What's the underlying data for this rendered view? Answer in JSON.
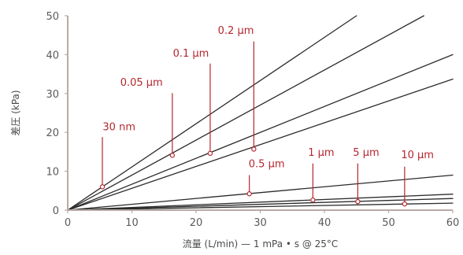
{
  "chart_data": {
    "type": "line",
    "title": "",
    "xlabel": "流量 (L/min) — 1 mPa • s @ 25°C",
    "ylabel": "差圧 (kPa)",
    "xlim": [
      0,
      60
    ],
    "ylim": [
      0,
      50
    ],
    "x_ticks": [
      "0",
      "10",
      "20",
      "30",
      "40",
      "50",
      "60"
    ],
    "y_ticks": [
      "0",
      "10",
      "20",
      "30",
      "40",
      "50"
    ],
    "grid": false,
    "colors": {
      "line": "#2b2b2b",
      "annotation": "#b5262e",
      "axis": "#b9aba6",
      "tick_text": "#5a5a5a"
    },
    "series": [
      {
        "x": [
          0,
          45
        ],
        "y": [
          0,
          50
        ]
      },
      {
        "x": [
          0,
          55.5
        ],
        "y": [
          0,
          50
        ]
      },
      {
        "x": [
          0,
          60
        ],
        "y": [
          0,
          40
        ]
      },
      {
        "x": [
          0,
          60
        ],
        "y": [
          0,
          33.7
        ]
      },
      {
        "x": [
          0,
          60
        ],
        "y": [
          0,
          9
        ]
      },
      {
        "x": [
          0,
          60
        ],
        "y": [
          0,
          4.1
        ]
      },
      {
        "x": [
          0,
          60
        ],
        "y": [
          0,
          3
        ]
      },
      {
        "x": [
          0,
          60
        ],
        "y": [
          0,
          1.8
        ]
      }
    ],
    "annotations": [
      {
        "label": "30 nm",
        "point": [
          5.4,
          6.0
        ],
        "label_at": [
          8,
          20.5
        ],
        "line_top": 18.8
      },
      {
        "label": "0.05 μm",
        "point": [
          16.3,
          14.1
        ],
        "label_at": [
          11.5,
          32
        ],
        "line_top": 30.1
      },
      {
        "label": "0.1 μm",
        "point": [
          22.2,
          14.6
        ],
        "label_at": [
          19.2,
          39.5
        ],
        "line_top": 37.7
      },
      {
        "label": "0.2 μm",
        "point": [
          29.0,
          15.7
        ],
        "label_at": [
          26.2,
          45.3
        ],
        "line_top": 43.4
      },
      {
        "label": "0.5 μm",
        "point": [
          28.3,
          4.2
        ],
        "label_at": [
          31,
          11
        ],
        "line_top": 9.0
      },
      {
        "label": "1 μm",
        "point": [
          38.2,
          2.6
        ],
        "label_at": [
          39.5,
          14
        ],
        "line_top": 12.0
      },
      {
        "label": "5 μm",
        "point": [
          45.2,
          2.2
        ],
        "label_at": [
          46.5,
          14
        ],
        "line_top": 12.0
      },
      {
        "label": "10 μm",
        "point": [
          52.5,
          1.6
        ],
        "label_at": [
          54.5,
          13.4
        ],
        "line_top": 11.2
      }
    ]
  }
}
